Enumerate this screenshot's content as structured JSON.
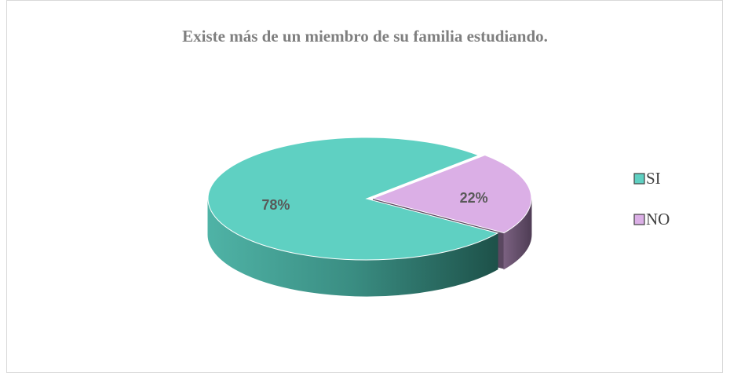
{
  "chart_data": {
    "type": "pie",
    "title": "Existe más de un miembro de su familia estudiando.",
    "categories": [
      "SI",
      "NO"
    ],
    "values": [
      78,
      22
    ],
    "value_labels": [
      "78%",
      "22%"
    ],
    "colors": [
      "#5fd0c2",
      "#dbafe6"
    ],
    "legend": "right"
  }
}
